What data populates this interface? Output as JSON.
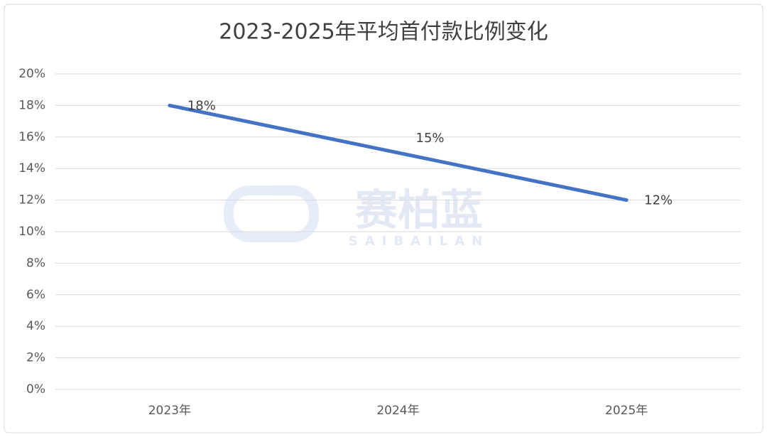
{
  "chart_data": {
    "type": "line",
    "title": "2023-2025年平均首付款比例变化",
    "categories": [
      "2023年",
      "2024年",
      "2025年"
    ],
    "values": [
      18,
      15,
      12
    ],
    "value_labels": [
      "18%",
      "15%",
      "12%"
    ],
    "color": "#4472c4",
    "ylim": [
      0,
      20
    ],
    "yticks": [
      {
        "value": 0,
        "label": "0%"
      },
      {
        "value": 2,
        "label": "2%"
      },
      {
        "value": 4,
        "label": "4%"
      },
      {
        "value": 6,
        "label": "6%"
      },
      {
        "value": 8,
        "label": "8%"
      },
      {
        "value": 10,
        "label": "10%"
      },
      {
        "value": 12,
        "label": "12%"
      },
      {
        "value": 14,
        "label": "14%"
      },
      {
        "value": 16,
        "label": "16%"
      },
      {
        "value": 18,
        "label": "18%"
      },
      {
        "value": 20,
        "label": "20%"
      }
    ],
    "grid": true,
    "watermark": {
      "text": "赛柏蓝",
      "subtext": "SAIBAILAN"
    }
  }
}
